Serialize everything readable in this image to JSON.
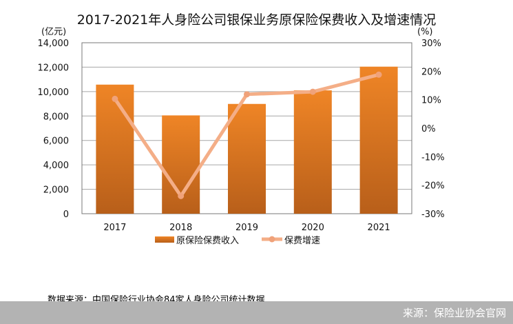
{
  "chart_data": {
    "type": "bar+line",
    "title": "2017-2021年人身险公司银保业务原保险保费收入及增速情况",
    "categories": [
      "2017",
      "2018",
      "2019",
      "2020",
      "2021"
    ],
    "series": [
      {
        "name": "原保险保费收入",
        "type": "bar",
        "axis": "left",
        "values": [
          10570,
          8050,
          8990,
          10100,
          12040
        ],
        "color": "#e97f24"
      },
      {
        "name": "保费增速",
        "type": "line",
        "axis": "right",
        "values": [
          10.3,
          -23.8,
          11.9,
          12.8,
          18.8
        ],
        "color": "#f4ae87"
      }
    ],
    "y_left": {
      "label": "(亿元)",
      "range": [
        0,
        14000
      ],
      "ticks": [
        "0",
        "2,000",
        "4,000",
        "6,000",
        "8,000",
        "10,000",
        "12,000",
        "14,000"
      ]
    },
    "y_right": {
      "label": "(%)",
      "range": [
        -30,
        30
      ],
      "ticks": [
        "-30%",
        "-20%",
        "-10%",
        "0%",
        "10%",
        "20%",
        "30%"
      ]
    },
    "grid": true,
    "legend": "bottom"
  },
  "source_note": "数据来源：中国保险行业协会84家人身险公司统计数据",
  "footer": "来源：保险业协会官网"
}
